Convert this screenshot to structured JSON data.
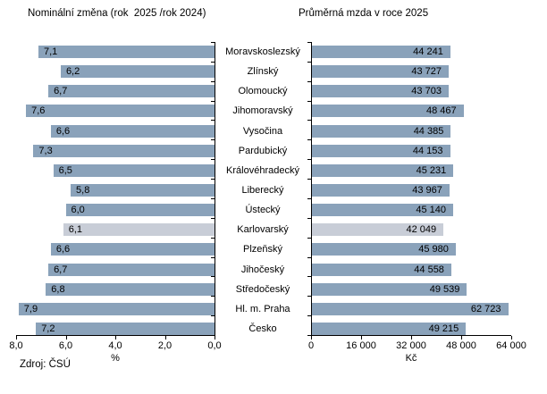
{
  "titles": {
    "left": "Nominální změna (rok  2025 /rok 2024)",
    "right": "Průměrná mzda v roce 2025"
  },
  "source": "Zdroj: ČSÚ",
  "colors": {
    "bar": "#8AA2BA",
    "bar_highlight": "#C8CDD7",
    "axis": "#000000",
    "text": "#000000"
  },
  "chart_data": [
    {
      "type": "bar",
      "orientation": "horizontal",
      "direction": "right-to-left",
      "title": "Nominální změna (rok  2025 /rok 2024)",
      "xlabel": "%",
      "categories": [
        "Moravskoslezský",
        "Zlínský",
        "Olomoucký",
        "Jihomoravský",
        "Vysočina",
        "Pardubický",
        "Královéhradecký",
        "Liberecký",
        "Ústecký",
        "Karlovarský",
        "Plzeňský",
        "Jihočeský",
        "Středočeský",
        "Hl. m. Praha",
        "Česko"
      ],
      "values": [
        7.1,
        6.2,
        6.7,
        7.6,
        6.6,
        7.3,
        6.5,
        5.8,
        6.0,
        6.1,
        6.6,
        6.7,
        6.8,
        7.9,
        7.2
      ],
      "value_labels": [
        "7,1",
        "6,2",
        "6,7",
        "7,6",
        "6,6",
        "7,3",
        "6,5",
        "5,8",
        "6,0",
        "6,1",
        "6,6",
        "6,7",
        "6,8",
        "7,9",
        "7,2"
      ],
      "xlim": [
        0,
        8
      ],
      "axis_ticks": [
        "8,0",
        "6,0",
        "4,0",
        "2,0",
        "0,0"
      ],
      "grid": false,
      "legend": false,
      "highlight_index": 9
    },
    {
      "type": "bar",
      "orientation": "horizontal",
      "direction": "left-to-right",
      "title": "Průměrná mzda v roce 2025",
      "xlabel": "Kč",
      "categories": [
        "Moravskoslezský",
        "Zlínský",
        "Olomoucký",
        "Jihomoravský",
        "Vysočina",
        "Pardubický",
        "Královéhradecký",
        "Liberecký",
        "Ústecký",
        "Karlovarský",
        "Plzeňský",
        "Jihočeský",
        "Středočeský",
        "Hl. m. Praha",
        "Česko"
      ],
      "values": [
        44241,
        43727,
        43703,
        48467,
        44385,
        44153,
        45231,
        43967,
        45140,
        42049,
        45980,
        44558,
        49539,
        62723,
        49215
      ],
      "value_labels": [
        "44 241",
        "43 727",
        "43 703",
        "48 467",
        "44 385",
        "44 153",
        "45 231",
        "43 967",
        "45 140",
        "42 049",
        "45 980",
        "44 558",
        "49 539",
        "62 723",
        "49 215"
      ],
      "xlim": [
        0,
        64000
      ],
      "axis_ticks": [
        "0",
        "16 000",
        "32 000",
        "48 000",
        "64 000"
      ],
      "grid": false,
      "legend": false,
      "highlight_index": 9
    }
  ]
}
